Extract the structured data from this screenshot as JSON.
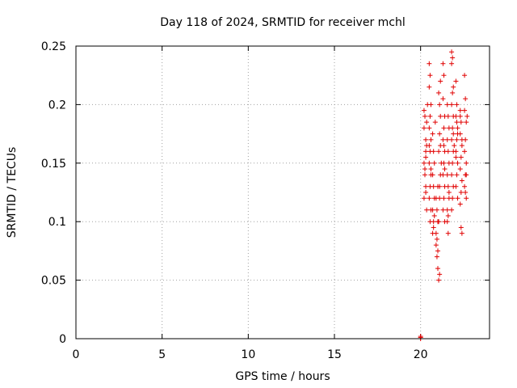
{
  "chart_data": {
    "type": "scatter",
    "title": "Day 118 of 2024, SRMTID for receiver mchl",
    "xlabel": "GPS time / hours",
    "ylabel": "SRMTID / TECUs",
    "xlim": [
      0,
      24
    ],
    "ylim": [
      0,
      0.25
    ],
    "xticks": [
      0,
      5,
      10,
      15,
      20
    ],
    "yticks": [
      0,
      0.05,
      0.1,
      0.15,
      0.2,
      0.25
    ],
    "ytick_labels": [
      "0",
      "0.05",
      "0.1",
      "0.15",
      "0.2",
      "0.25"
    ],
    "grid": true,
    "marker": "+",
    "color": "#e00000",
    "series": [
      {
        "points": [
          [
            20.0,
            0.001
          ],
          [
            20.0,
            0.0
          ],
          [
            20.0,
            0.002
          ],
          [
            20.2,
            0.18
          ],
          [
            20.25,
            0.19
          ],
          [
            20.3,
            0.17
          ],
          [
            20.2,
            0.15
          ],
          [
            20.3,
            0.16
          ],
          [
            20.25,
            0.14
          ],
          [
            20.3,
            0.13
          ],
          [
            20.2,
            0.12
          ],
          [
            20.35,
            0.11
          ],
          [
            20.3,
            0.125
          ],
          [
            20.25,
            0.145
          ],
          [
            20.35,
            0.185
          ],
          [
            20.2,
            0.195
          ],
          [
            20.4,
            0.2
          ],
          [
            20.35,
            0.165
          ],
          [
            20.3,
            0.155
          ],
          [
            20.5,
            0.235
          ],
          [
            20.55,
            0.225
          ],
          [
            20.5,
            0.215
          ],
          [
            20.6,
            0.2
          ],
          [
            20.55,
            0.19
          ],
          [
            20.5,
            0.18
          ],
          [
            20.6,
            0.17
          ],
          [
            20.55,
            0.16
          ],
          [
            20.5,
            0.15
          ],
          [
            20.6,
            0.14
          ],
          [
            20.55,
            0.13
          ],
          [
            20.5,
            0.12
          ],
          [
            20.6,
            0.11
          ],
          [
            20.55,
            0.1
          ],
          [
            20.6,
            0.145
          ],
          [
            20.5,
            0.165
          ],
          [
            20.7,
            0.09
          ],
          [
            20.75,
            0.1
          ],
          [
            20.7,
            0.11
          ],
          [
            20.8,
            0.12
          ],
          [
            20.75,
            0.13
          ],
          [
            20.7,
            0.14
          ],
          [
            20.8,
            0.15
          ],
          [
            20.75,
            0.16
          ],
          [
            20.7,
            0.175
          ],
          [
            20.85,
            0.185
          ],
          [
            20.8,
            0.105
          ],
          [
            20.75,
            0.095
          ],
          [
            20.9,
            0.08
          ],
          [
            20.95,
            0.07
          ],
          [
            21.0,
            0.06
          ],
          [
            20.9,
            0.09
          ],
          [
            21.0,
            0.1
          ],
          [
            20.95,
            0.11
          ],
          [
            20.9,
            0.12
          ],
          [
            21.0,
            0.13
          ],
          [
            20.95,
            0.085
          ],
          [
            21.0,
            0.075
          ],
          [
            21.05,
            0.05
          ],
          [
            21.1,
            0.055
          ],
          [
            21.05,
            0.1
          ],
          [
            21.1,
            0.12
          ],
          [
            21.15,
            0.14
          ],
          [
            21.05,
            0.16
          ],
          [
            21.1,
            0.175
          ],
          [
            21.15,
            0.19
          ],
          [
            21.1,
            0.2
          ],
          [
            21.05,
            0.21
          ],
          [
            21.15,
            0.22
          ],
          [
            21.1,
            0.13
          ],
          [
            21.2,
            0.15
          ],
          [
            21.15,
            0.165
          ],
          [
            21.3,
            0.235
          ],
          [
            21.35,
            0.225
          ],
          [
            21.3,
            0.205
          ],
          [
            21.4,
            0.19
          ],
          [
            21.35,
            0.18
          ],
          [
            21.3,
            0.17
          ],
          [
            21.4,
            0.16
          ],
          [
            21.35,
            0.15
          ],
          [
            21.3,
            0.14
          ],
          [
            21.4,
            0.13
          ],
          [
            21.35,
            0.12
          ],
          [
            21.3,
            0.11
          ],
          [
            21.4,
            0.1
          ],
          [
            21.35,
            0.165
          ],
          [
            21.4,
            0.145
          ],
          [
            21.55,
            0.1
          ],
          [
            21.6,
            0.09
          ],
          [
            21.55,
            0.11
          ],
          [
            21.65,
            0.12
          ],
          [
            21.6,
            0.13
          ],
          [
            21.55,
            0.14
          ],
          [
            21.65,
            0.15
          ],
          [
            21.6,
            0.16
          ],
          [
            21.55,
            0.17
          ],
          [
            21.65,
            0.18
          ],
          [
            21.6,
            0.19
          ],
          [
            21.55,
            0.2
          ],
          [
            21.6,
            0.105
          ],
          [
            21.65,
            0.125
          ],
          [
            21.8,
            0.245
          ],
          [
            21.85,
            0.24
          ],
          [
            21.8,
            0.235
          ],
          [
            21.9,
            0.215
          ],
          [
            21.85,
            0.21
          ],
          [
            21.8,
            0.2
          ],
          [
            21.9,
            0.19
          ],
          [
            21.85,
            0.18
          ],
          [
            21.8,
            0.17
          ],
          [
            21.9,
            0.16
          ],
          [
            21.85,
            0.15
          ],
          [
            21.8,
            0.14
          ],
          [
            21.9,
            0.13
          ],
          [
            21.85,
            0.12
          ],
          [
            21.8,
            0.11
          ],
          [
            21.9,
            0.175
          ],
          [
            21.95,
            0.165
          ],
          [
            22.05,
            0.22
          ],
          [
            22.1,
            0.2
          ],
          [
            22.05,
            0.19
          ],
          [
            22.15,
            0.18
          ],
          [
            22.1,
            0.17
          ],
          [
            22.05,
            0.16
          ],
          [
            22.15,
            0.15
          ],
          [
            22.1,
            0.14
          ],
          [
            22.05,
            0.13
          ],
          [
            22.15,
            0.12
          ],
          [
            22.1,
            0.185
          ],
          [
            22.15,
            0.175
          ],
          [
            22.05,
            0.155
          ],
          [
            22.3,
            0.195
          ],
          [
            22.35,
            0.185
          ],
          [
            22.3,
            0.175
          ],
          [
            22.4,
            0.165
          ],
          [
            22.35,
            0.155
          ],
          [
            22.3,
            0.145
          ],
          [
            22.4,
            0.135
          ],
          [
            22.35,
            0.125
          ],
          [
            22.3,
            0.115
          ],
          [
            22.4,
            0.09
          ],
          [
            22.35,
            0.095
          ],
          [
            22.3,
            0.19
          ],
          [
            22.4,
            0.17
          ],
          [
            22.55,
            0.225
          ],
          [
            22.6,
            0.205
          ],
          [
            22.55,
            0.195
          ],
          [
            22.65,
            0.185
          ],
          [
            22.6,
            0.17
          ],
          [
            22.55,
            0.16
          ],
          [
            22.65,
            0.15
          ],
          [
            22.6,
            0.14
          ],
          [
            22.55,
            0.13
          ],
          [
            22.65,
            0.12
          ],
          [
            22.6,
            0.125
          ],
          [
            22.65,
            0.14
          ],
          [
            22.7,
            0.19
          ]
        ]
      }
    ]
  }
}
